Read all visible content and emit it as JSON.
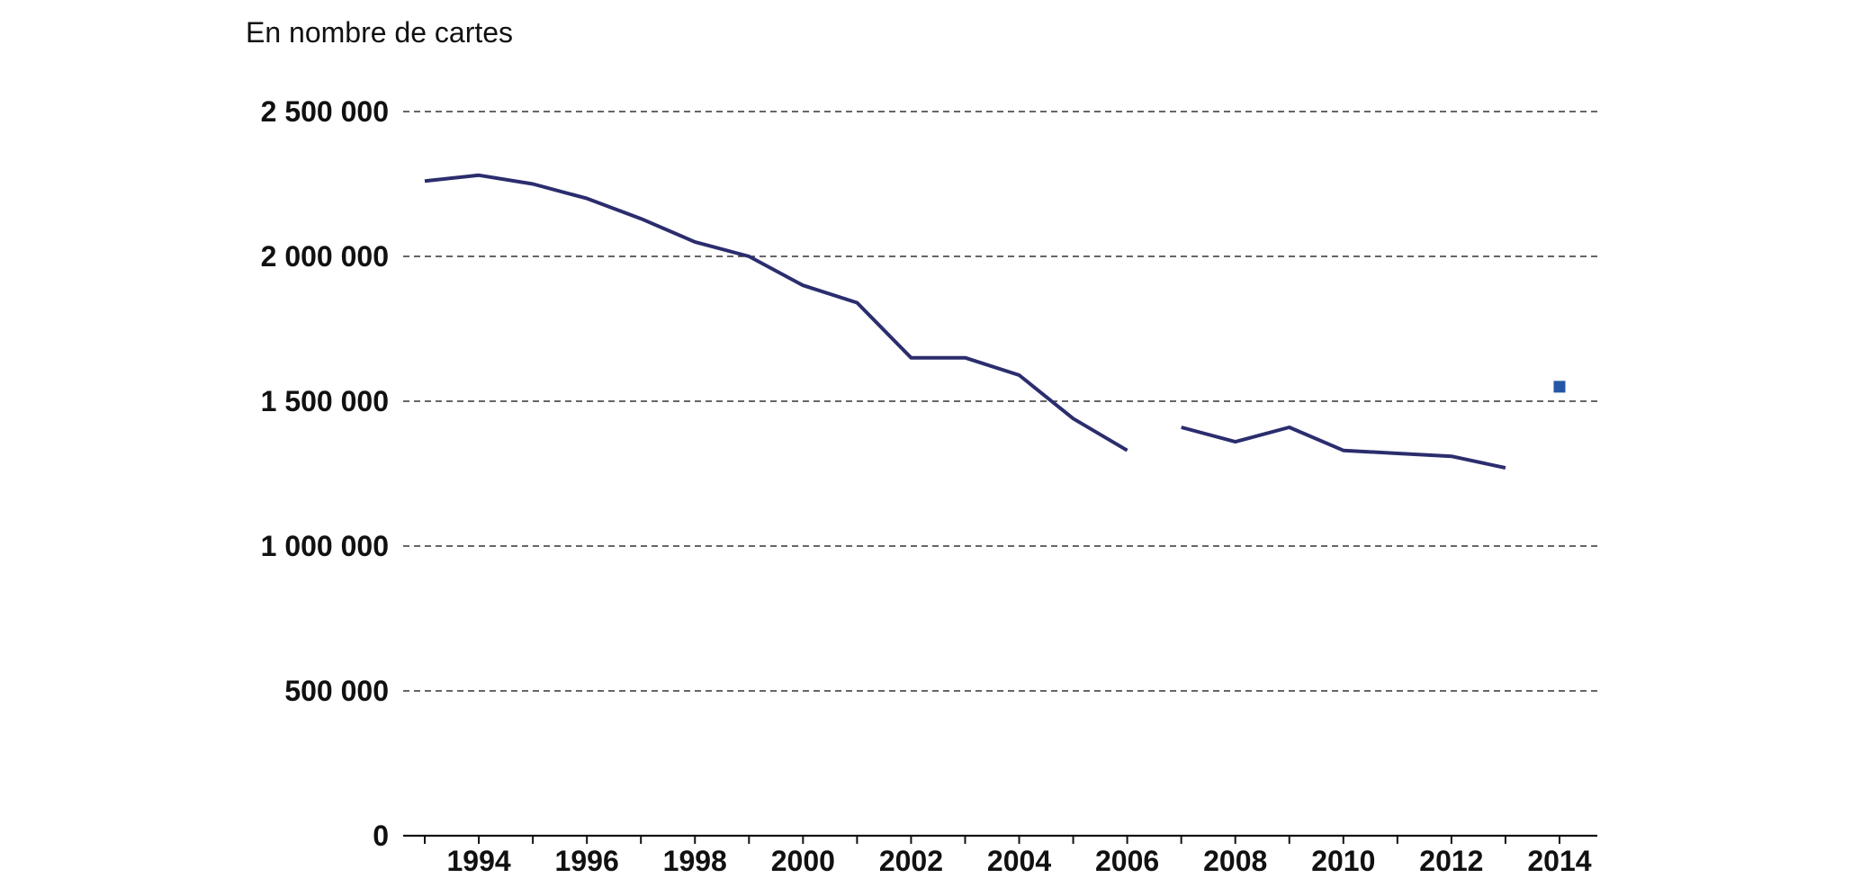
{
  "chart_data": {
    "type": "line",
    "ylabel": "En nombre de cartes",
    "ylim": [
      0,
      2500000
    ],
    "yticks": [
      0,
      500000,
      1000000,
      1500000,
      2000000,
      2500000
    ],
    "ytick_labels": [
      "0",
      "500 000",
      "1 000 000",
      "1 500 000",
      "2 000 000",
      "2 500 000"
    ],
    "xlim": [
      1992.6,
      2014.7
    ],
    "xticks": [
      1994,
      1996,
      1998,
      2000,
      2002,
      2004,
      2006,
      2008,
      2010,
      2012,
      2014
    ],
    "xtick_labels": [
      "1994",
      "1996",
      "1998",
      "2000",
      "2002",
      "2004",
      "2006",
      "2008",
      "2010",
      "2012",
      "2014"
    ],
    "grid": true,
    "legend": "none",
    "series": [
      {
        "color": "#2b2d6e",
        "segments": [
          [
            [
              1993,
              2260000
            ],
            [
              1994,
              2280000
            ],
            [
              1995,
              2250000
            ],
            [
              1996,
              2200000
            ],
            [
              1997,
              2130000
            ],
            [
              1998,
              2050000
            ],
            [
              1999,
              2000000
            ],
            [
              2000,
              1900000
            ],
            [
              2001,
              1840000
            ],
            [
              2002,
              1650000
            ],
            [
              2003,
              1650000
            ],
            [
              2004,
              1590000
            ],
            [
              2005,
              1440000
            ],
            [
              2006,
              1330000
            ]
          ],
          [
            [
              2007,
              1410000
            ],
            [
              2008,
              1360000
            ],
            [
              2009,
              1410000
            ],
            [
              2010,
              1330000
            ],
            [
              2011,
              1320000
            ],
            [
              2012,
              1310000
            ],
            [
              2013,
              1270000
            ]
          ]
        ]
      }
    ],
    "markers": [
      {
        "x": 2014,
        "y": 1550000,
        "color": "#2457a6"
      }
    ]
  }
}
